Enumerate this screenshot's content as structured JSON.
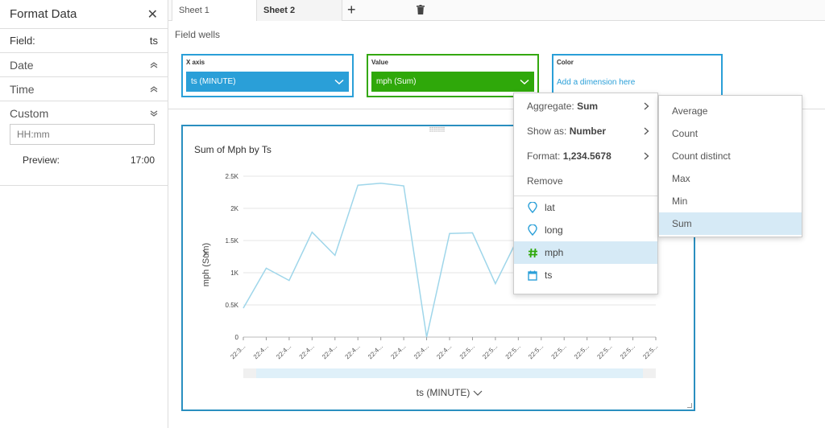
{
  "format_panel": {
    "title": "Format Data",
    "field_label": "Field:",
    "field_value": "ts",
    "sections": [
      {
        "label": "Date"
      },
      {
        "label": "Time"
      }
    ],
    "custom_label": "Custom",
    "format_input_value": "HH:mm",
    "preview_label": "Preview:",
    "preview_value": "17:00"
  },
  "tabs": [
    {
      "label": "Sheet 1",
      "active": false
    },
    {
      "label": "Sheet 2",
      "active": true
    }
  ],
  "field_wells": {
    "label": "Field wells",
    "x_axis": {
      "title": "X axis",
      "value": "ts (MINUTE)"
    },
    "value": {
      "title": "Value",
      "value": "mph (Sum)"
    },
    "color": {
      "title": "Color",
      "placeholder": "Add a dimension here"
    }
  },
  "visual": {
    "title": "Sum of Mph by Ts",
    "y_axis_label": "mph (Sum)",
    "x_axis_label": "ts (MINUTE)"
  },
  "chart_data": {
    "type": "line",
    "title": "Sum of Mph by Ts",
    "xlabel": "ts (MINUTE)",
    "ylabel": "mph (Sum)",
    "ylim": [
      0,
      2500
    ],
    "y_ticks": [
      "0",
      "0.5K",
      "1K",
      "1.5K",
      "2K",
      "2.5K"
    ],
    "x_ticks": [
      "22:3...",
      "22:4...",
      "22:4...",
      "22:4...",
      "22:4...",
      "22:4...",
      "22:4...",
      "22:4...",
      "22:4...",
      "22:4...",
      "22:5...",
      "22:5...",
      "22:5...",
      "22:5...",
      "22:5...",
      "22:5...",
      "22:5...",
      "22:5...",
      "22:5..."
    ],
    "grid": true,
    "color": "#9fd6ea",
    "series": [
      {
        "values": [
          450,
          1070,
          880,
          1630,
          1270,
          2360,
          2390,
          2350,
          0,
          1610,
          1620,
          830,
          1550
        ]
      }
    ]
  },
  "aggregate_menu": {
    "items": [
      {
        "label": "Aggregate:",
        "value": "Sum"
      },
      {
        "label": "Show as:",
        "value": "Number"
      },
      {
        "label": "Format:",
        "value": "1,234.5678"
      }
    ],
    "remove_label": "Remove",
    "fields": [
      {
        "label": "lat",
        "icon": "geo-pin-icon",
        "selected": false
      },
      {
        "label": "long",
        "icon": "geo-pin-icon",
        "selected": false
      },
      {
        "label": "mph",
        "icon": "measure-hash-icon",
        "selected": true
      },
      {
        "label": "ts",
        "icon": "calendar-icon",
        "selected": false
      }
    ]
  },
  "aggregate_submenu": {
    "items": [
      {
        "label": "Average",
        "selected": false
      },
      {
        "label": "Count",
        "selected": false
      },
      {
        "label": "Count distinct",
        "selected": false
      },
      {
        "label": "Max",
        "selected": false
      },
      {
        "label": "Min",
        "selected": false
      },
      {
        "label": "Sum",
        "selected": true
      }
    ]
  },
  "colors": {
    "accent_blue": "#2a9fd8",
    "accent_green": "#2fa80a",
    "selection": "#d6eaf6"
  }
}
